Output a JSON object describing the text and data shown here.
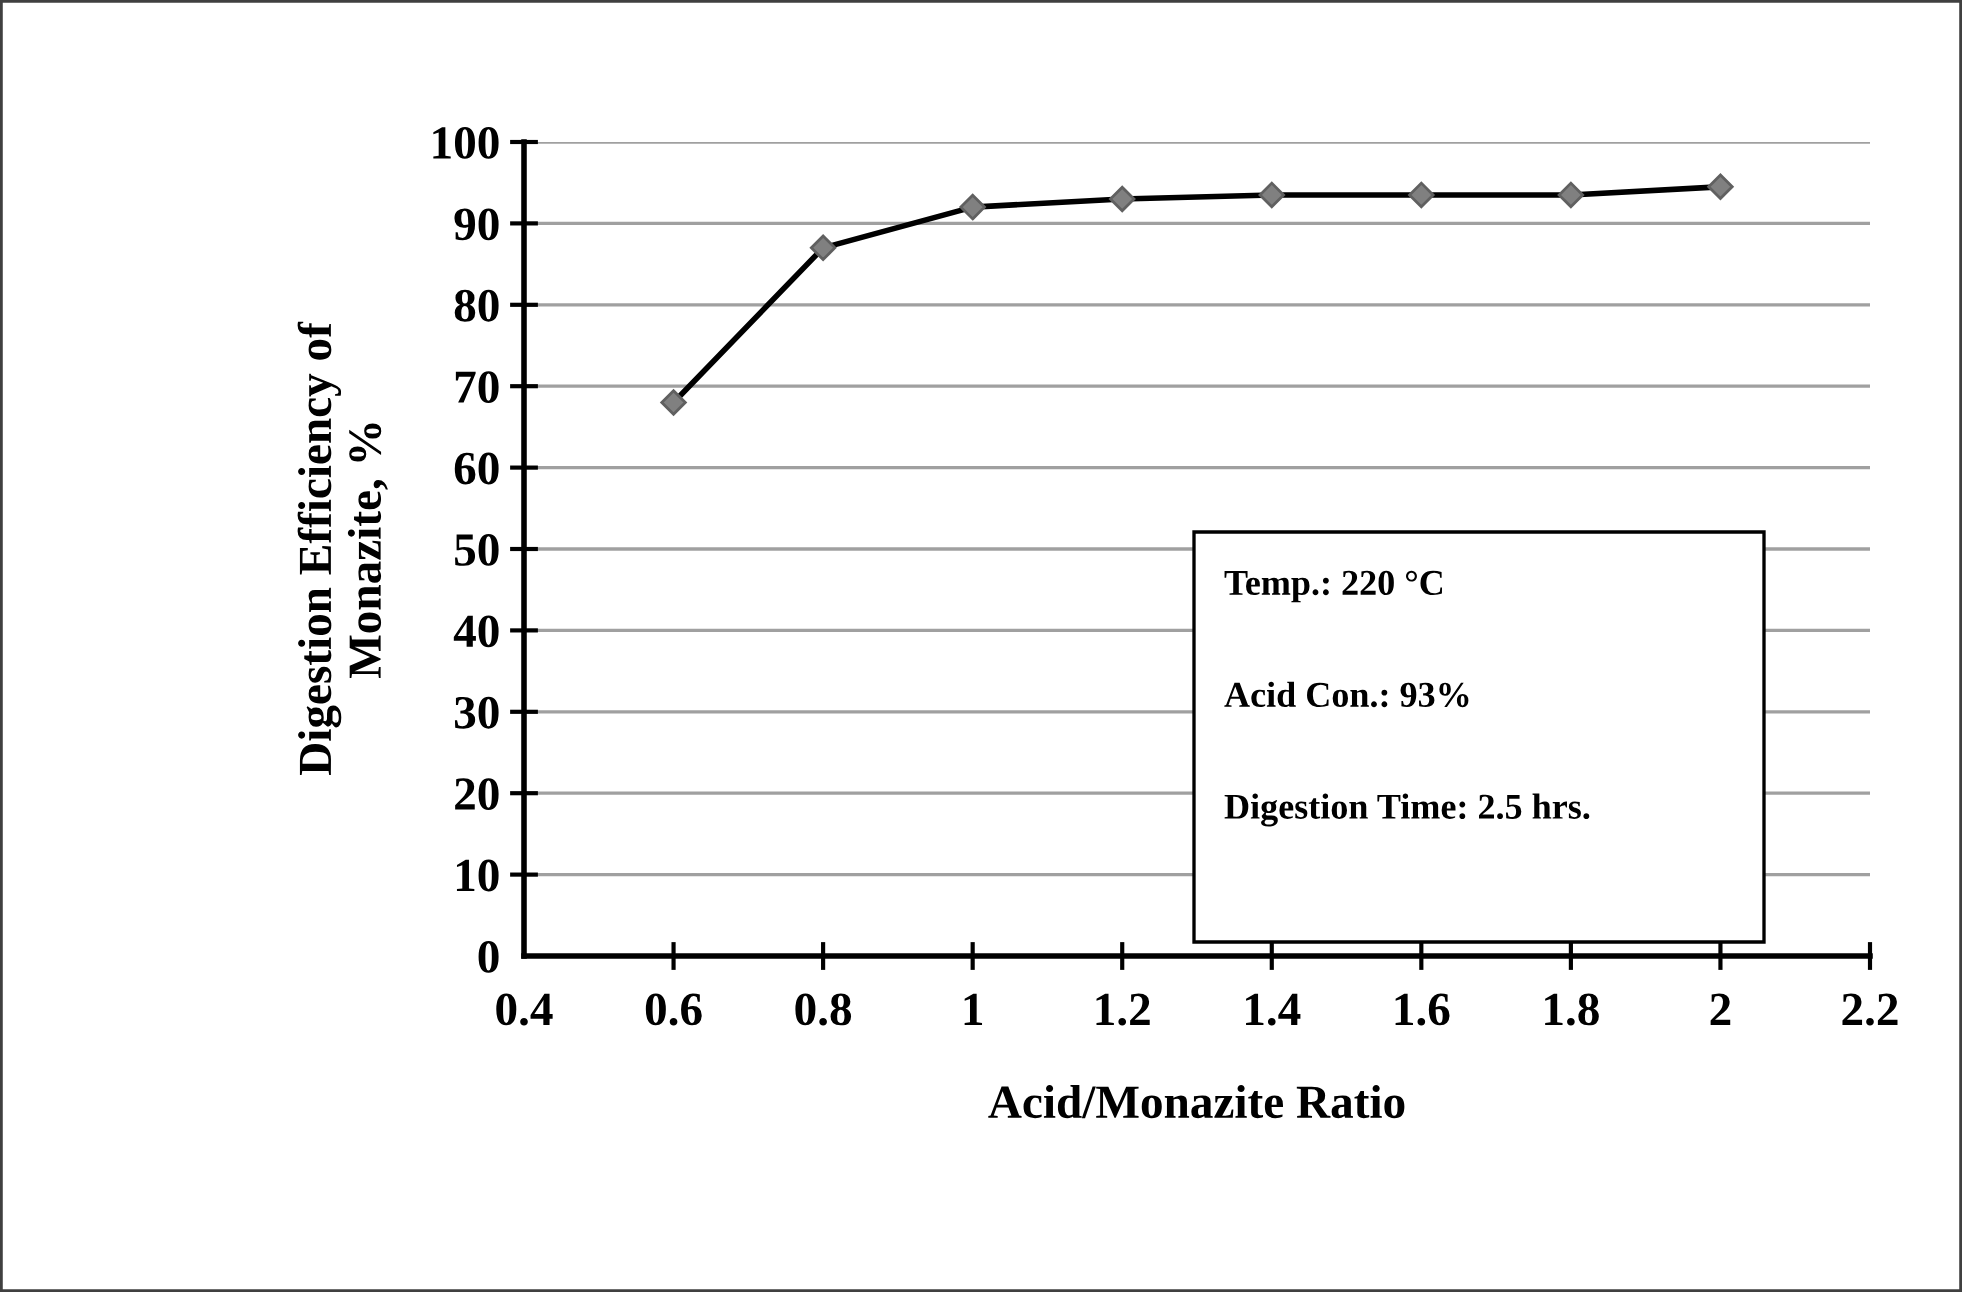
{
  "chart_data": {
    "type": "line",
    "xlabel": "Acid/Monazite Ratio",
    "ylabel": "Digestion Efficiency of\nMonazite, %",
    "x": [
      0.6,
      0.8,
      1.0,
      1.2,
      1.4,
      1.6,
      1.8,
      2.0
    ],
    "series": [
      {
        "color": "#000000",
        "values": [
          68,
          87,
          92,
          93,
          93.5,
          93.5,
          93.5,
          94.5
        ]
      }
    ],
    "marker": "diamond",
    "line_style": "solid",
    "xlim": [
      0.4,
      2.2
    ],
    "xticks": [
      0.4,
      0.6,
      0.8,
      1,
      1.2,
      1.4,
      1.6,
      1.8,
      2,
      2.2
    ],
    "ylim": [
      0,
      100
    ],
    "yticks": [
      0,
      10,
      20,
      30,
      40,
      50,
      60,
      70,
      80,
      90,
      100
    ],
    "grid": "y",
    "legend": false,
    "annotations": [
      "Temp.: 220 °C",
      "Acid Con.: 93%",
      "Digestion Time: 2.5 hrs."
    ]
  }
}
